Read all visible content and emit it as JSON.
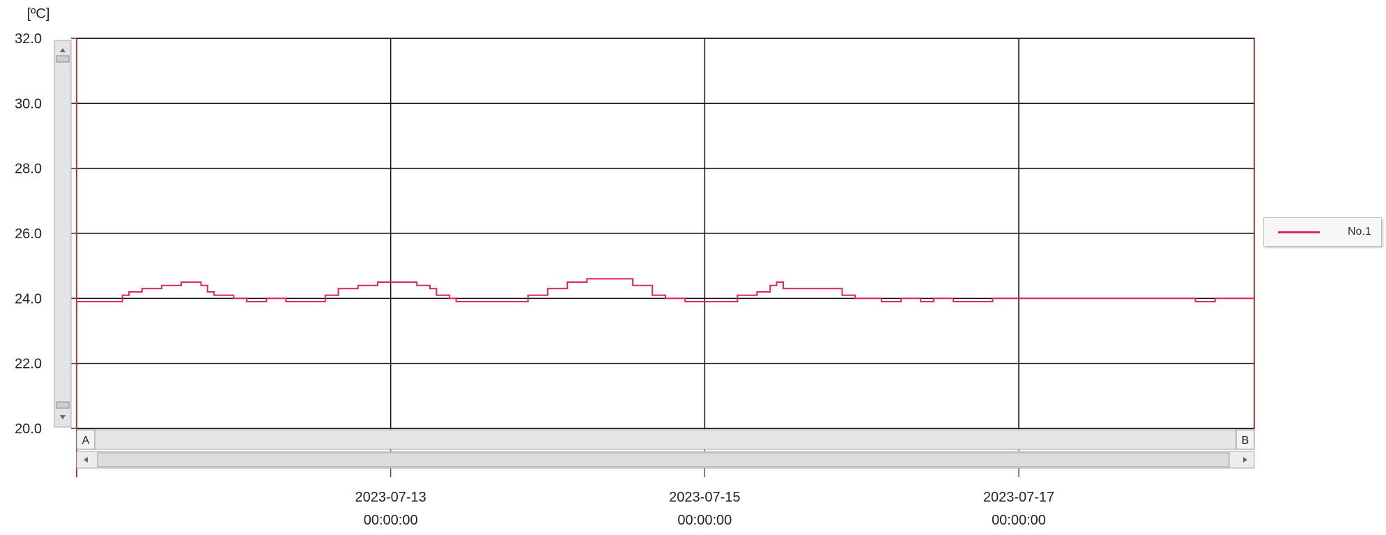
{
  "chart_data": {
    "type": "line",
    "unit_label": "[ºC]",
    "ylim": [
      20.0,
      32.0
    ],
    "y_ticks": [
      "20.0",
      "22.0",
      "24.0",
      "26.0",
      "28.0",
      "30.0",
      "32.0"
    ],
    "x_range": [
      "2023-07-11 00:00:00",
      "2023-07-18 12:00:00"
    ],
    "x_ticks": [
      {
        "date": "2023-07-13",
        "time": "00:00:00",
        "at": "2023-07-13 00:00:00"
      },
      {
        "date": "2023-07-15",
        "time": "00:00:00",
        "at": "2023-07-15 00:00:00"
      },
      {
        "date": "2023-07-17",
        "time": "00:00:00",
        "at": "2023-07-17 00:00:00"
      }
    ],
    "grid": true,
    "legend": "right",
    "colors": {
      "series": "#e0245e",
      "axis": "#d0302a",
      "grid": "#111111"
    },
    "scroll_markers": [
      "A",
      "B"
    ],
    "series": [
      {
        "name": "No.1",
        "points": [
          [
            "2023-07-11 00:00:00",
            23.9
          ],
          [
            "2023-07-11 06:00:00",
            23.9
          ],
          [
            "2023-07-11 07:00:00",
            24.1
          ],
          [
            "2023-07-11 08:00:00",
            24.2
          ],
          [
            "2023-07-11 10:00:00",
            24.3
          ],
          [
            "2023-07-11 13:00:00",
            24.4
          ],
          [
            "2023-07-11 16:00:00",
            24.5
          ],
          [
            "2023-07-11 19:00:00",
            24.4
          ],
          [
            "2023-07-11 20:00:00",
            24.2
          ],
          [
            "2023-07-11 21:00:00",
            24.1
          ],
          [
            "2023-07-12 00:00:00",
            24.0
          ],
          [
            "2023-07-12 02:00:00",
            23.9
          ],
          [
            "2023-07-12 05:00:00",
            24.0
          ],
          [
            "2023-07-12 08:00:00",
            23.9
          ],
          [
            "2023-07-12 12:00:00",
            23.9
          ],
          [
            "2023-07-12 14:00:00",
            24.1
          ],
          [
            "2023-07-12 16:00:00",
            24.3
          ],
          [
            "2023-07-12 19:00:00",
            24.4
          ],
          [
            "2023-07-12 22:00:00",
            24.5
          ],
          [
            "2023-07-13 02:00:00",
            24.5
          ],
          [
            "2023-07-13 04:00:00",
            24.4
          ],
          [
            "2023-07-13 06:00:00",
            24.3
          ],
          [
            "2023-07-13 07:00:00",
            24.1
          ],
          [
            "2023-07-13 09:00:00",
            24.0
          ],
          [
            "2023-07-13 10:00:00",
            23.9
          ],
          [
            "2023-07-13 19:00:00",
            23.9
          ],
          [
            "2023-07-13 21:00:00",
            24.1
          ],
          [
            "2023-07-14 00:00:00",
            24.3
          ],
          [
            "2023-07-14 03:00:00",
            24.5
          ],
          [
            "2023-07-14 06:00:00",
            24.6
          ],
          [
            "2023-07-14 10:00:00",
            24.6
          ],
          [
            "2023-07-14 13:00:00",
            24.4
          ],
          [
            "2023-07-14 16:00:00",
            24.1
          ],
          [
            "2023-07-14 18:00:00",
            24.0
          ],
          [
            "2023-07-14 21:00:00",
            23.9
          ],
          [
            "2023-07-15 03:00:00",
            23.9
          ],
          [
            "2023-07-15 05:00:00",
            24.1
          ],
          [
            "2023-07-15 08:00:00",
            24.2
          ],
          [
            "2023-07-15 10:00:00",
            24.4
          ],
          [
            "2023-07-15 11:00:00",
            24.5
          ],
          [
            "2023-07-15 12:00:00",
            24.3
          ],
          [
            "2023-07-15 18:00:00",
            24.3
          ],
          [
            "2023-07-15 21:00:00",
            24.1
          ],
          [
            "2023-07-15 23:00:00",
            24.0
          ],
          [
            "2023-07-16 03:00:00",
            23.9
          ],
          [
            "2023-07-16 06:00:00",
            24.0
          ],
          [
            "2023-07-16 09:00:00",
            23.9
          ],
          [
            "2023-07-16 11:00:00",
            24.0
          ],
          [
            "2023-07-16 14:00:00",
            23.9
          ],
          [
            "2023-07-16 20:00:00",
            24.0
          ],
          [
            "2023-07-17 02:00:00",
            24.0
          ],
          [
            "2023-07-17 06:00:00",
            24.0
          ],
          [
            "2023-07-17 14:00:00",
            24.0
          ],
          [
            "2023-07-18 00:00:00",
            24.0
          ],
          [
            "2023-07-18 03:00:00",
            23.9
          ],
          [
            "2023-07-18 06:00:00",
            24.0
          ],
          [
            "2023-07-18 12:00:00",
            24.0
          ]
        ]
      }
    ]
  }
}
